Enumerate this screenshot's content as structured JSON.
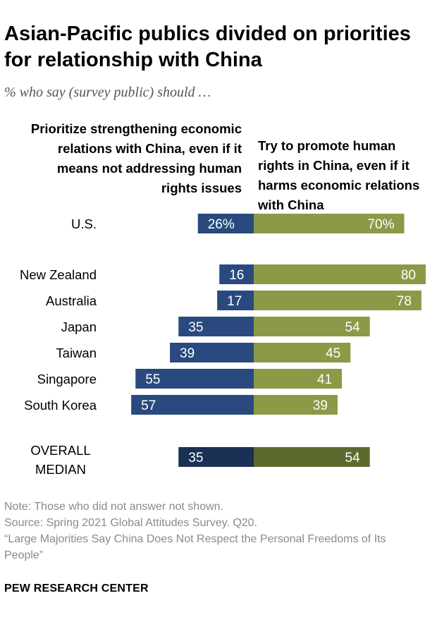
{
  "title": "Asian-Pacific publics divided on priorities for relationship with China",
  "subtitle": "% who say (survey public) should …",
  "left_header": "Prioritize strengthening economic relations with China, even if it means not addressing human rights issues",
  "right_header": "Try to promote human rights in China, even if it harms economic relations with China",
  "note": "Note: Those who did not answer not shown.",
  "source": "Source: Spring 2021 Global Attitudes Survey. Q20.",
  "report": "“Large Majorities Say China Does Not Respect the Personal Freedoms of Its People”",
  "brand": "PEW RESEARCH CENTER",
  "colors": {
    "left": "#2a4a7f",
    "right": "#8b9a47",
    "left_median": "#1a3055",
    "right_median": "#5c6a2e",
    "label_text": "#ffffff"
  },
  "chart_data": {
    "type": "bar",
    "orientation": "diverging-horizontal",
    "categories": [
      "U.S.",
      "New Zealand",
      "Australia",
      "Japan",
      "Taiwan",
      "Singapore",
      "South Korea",
      "OVERALL MEDIAN"
    ],
    "series": [
      {
        "name": "Prioritize strengthening economic relations with China, even if it means not addressing human rights issues",
        "values": [
          26,
          16,
          17,
          35,
          39,
          55,
          57,
          35
        ],
        "labels": [
          "26%",
          "16",
          "17",
          "35",
          "39",
          "55",
          "57",
          "35"
        ]
      },
      {
        "name": "Try to promote human rights in China, even if it harms economic relations with China",
        "values": [
          70,
          80,
          78,
          54,
          45,
          41,
          39,
          54
        ],
        "labels": [
          "70%",
          "80",
          "78",
          "54",
          "45",
          "41",
          "39",
          "54"
        ]
      }
    ]
  }
}
